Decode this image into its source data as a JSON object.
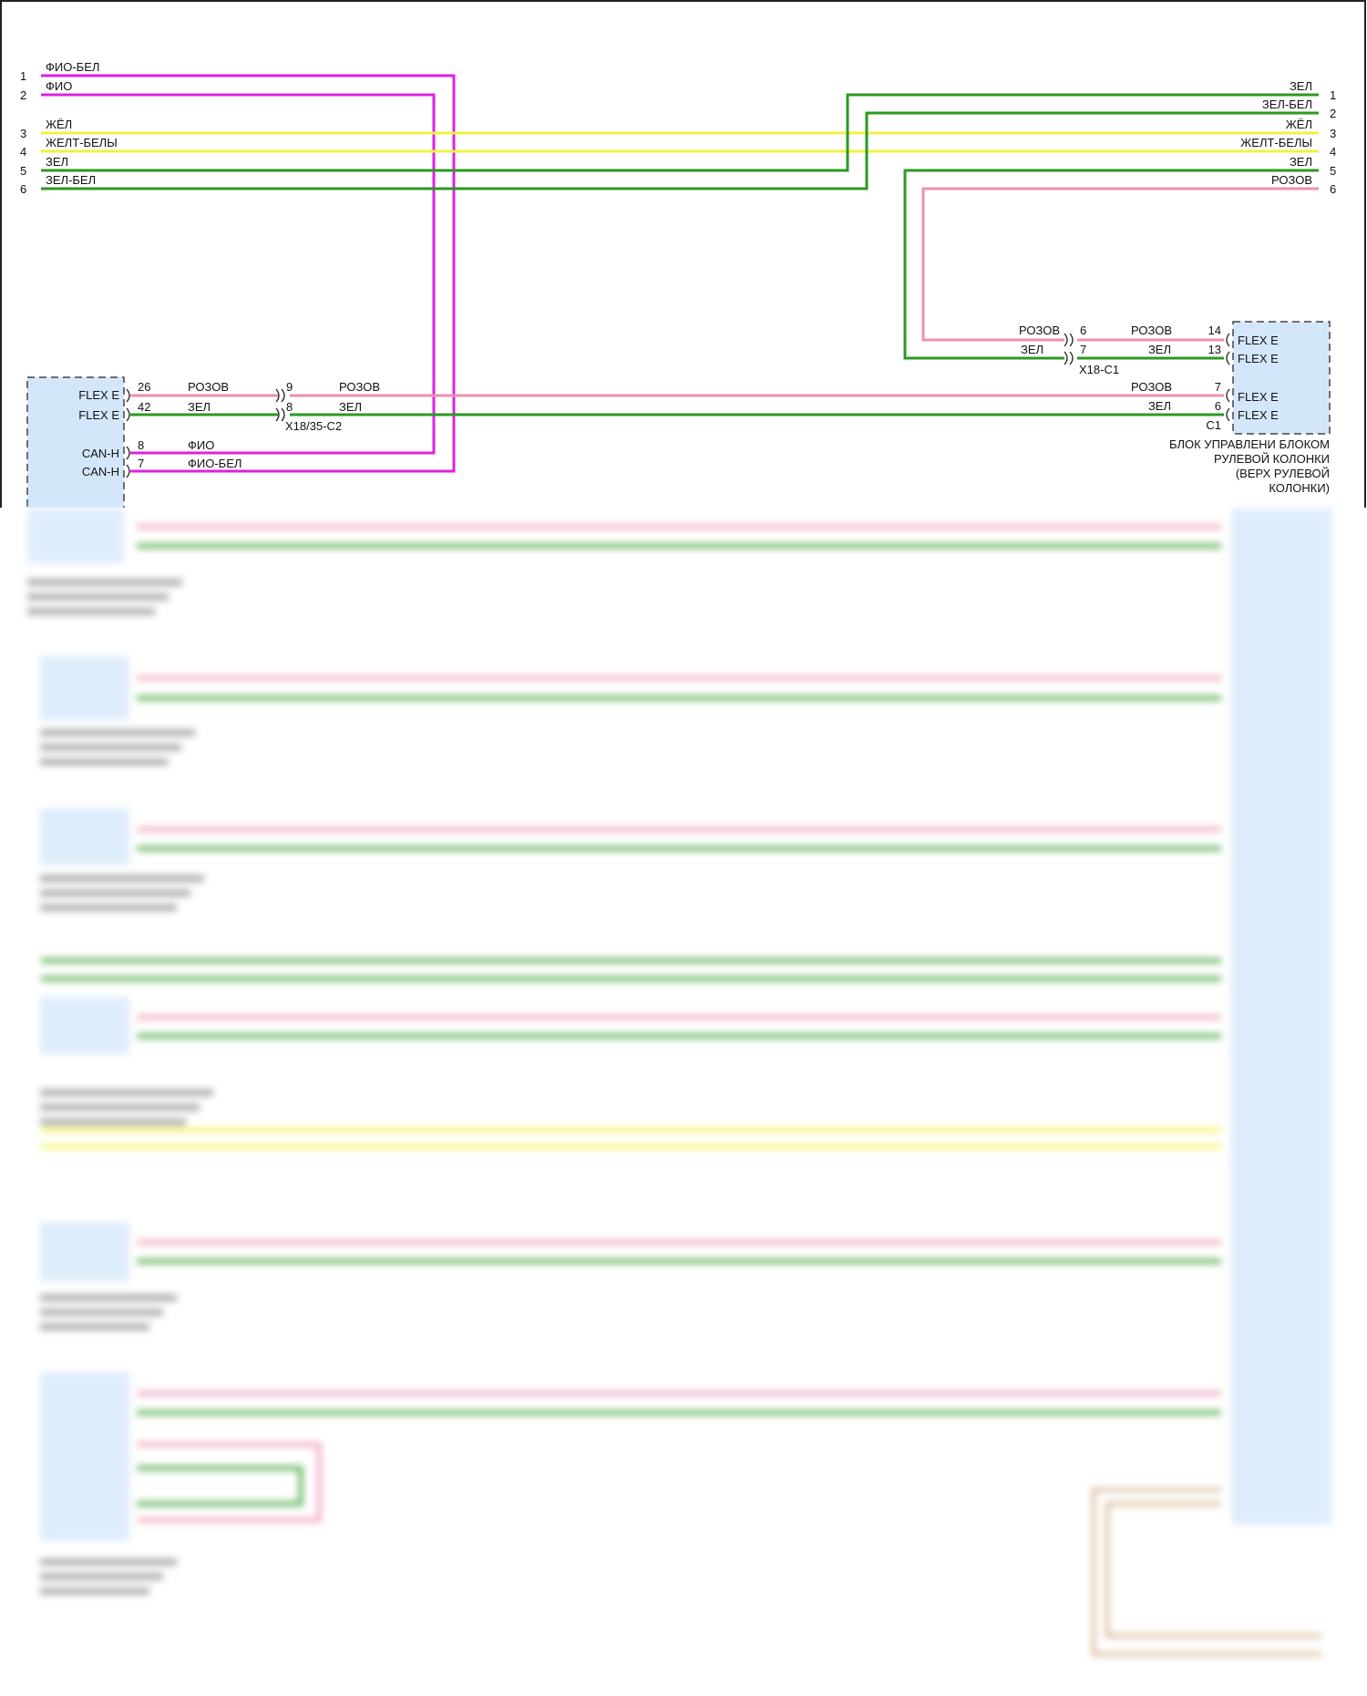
{
  "colors": {
    "magenta": "#e020e0",
    "yellow": "#f2f040",
    "green": "#2a9a20",
    "pink": "#ec8fb2",
    "module_fill": "#d4e7fa"
  },
  "left_terminals": [
    {
      "pin": "1",
      "label": "ФИО-БЕЛ"
    },
    {
      "pin": "2",
      "label": "ФИО"
    },
    {
      "pin": "3",
      "label": "ЖЁЛ"
    },
    {
      "pin": "4",
      "label": "ЖЕЛТ-БЕЛЫ"
    },
    {
      "pin": "5",
      "label": "ЗЕЛ"
    },
    {
      "pin": "6",
      "label": "ЗЕЛ-БЕЛ"
    }
  ],
  "right_terminals": [
    {
      "pin": "1",
      "label": "ЗЕЛ"
    },
    {
      "pin": "2",
      "label": "ЗЕЛ-БЕЛ"
    },
    {
      "pin": "3",
      "label": "ЖЁЛ"
    },
    {
      "pin": "4",
      "label": "ЖЕЛТ-БЕЛЫ"
    },
    {
      "pin": "5",
      "label": "ЗЕЛ"
    },
    {
      "pin": "6",
      "label": "РОЗОВ"
    }
  ],
  "left_module": {
    "pins": [
      {
        "name": "FLEX E",
        "pin": "26",
        "wire": "РОЗОВ"
      },
      {
        "name": "FLEX E",
        "pin": "42",
        "wire": "ЗЕЛ"
      },
      {
        "name": "CAN-H",
        "pin": "8",
        "wire": "ФИО"
      },
      {
        "name": "CAN-H",
        "pin": "7",
        "wire": "ФИО-БЕЛ"
      }
    ]
  },
  "connector_x18_35_c2": {
    "name": "X18/35-C2",
    "pins": [
      "9",
      "8"
    ],
    "wires": [
      "РОЗОВ",
      "ЗЕЛ"
    ]
  },
  "connector_x18_c1": {
    "name": "X18-C1",
    "pins": [
      "6",
      "7"
    ],
    "wires_in": [
      "РОЗОВ",
      "ЗЕЛ"
    ],
    "wires_out": [
      "РОЗОВ",
      "ЗЕЛ"
    ]
  },
  "right_module": {
    "pins": [
      {
        "name": "FLEX E",
        "pin": "14"
      },
      {
        "name": "FLEX E",
        "pin": "13"
      },
      {
        "name": "FLEX E",
        "pin": "7",
        "wire": "РОЗОВ"
      },
      {
        "name": "FLEX E",
        "pin": "6",
        "wire": "ЗЕЛ"
      }
    ],
    "connector": "C1",
    "title_lines": [
      "БЛОК УПРАВЛЕНИ БЛОКОМ",
      "РУЛЕВОЙ КОЛОНКИ",
      "(ВЕРХ РУЛЕВОЙ",
      "КОЛОНКИ)"
    ]
  }
}
